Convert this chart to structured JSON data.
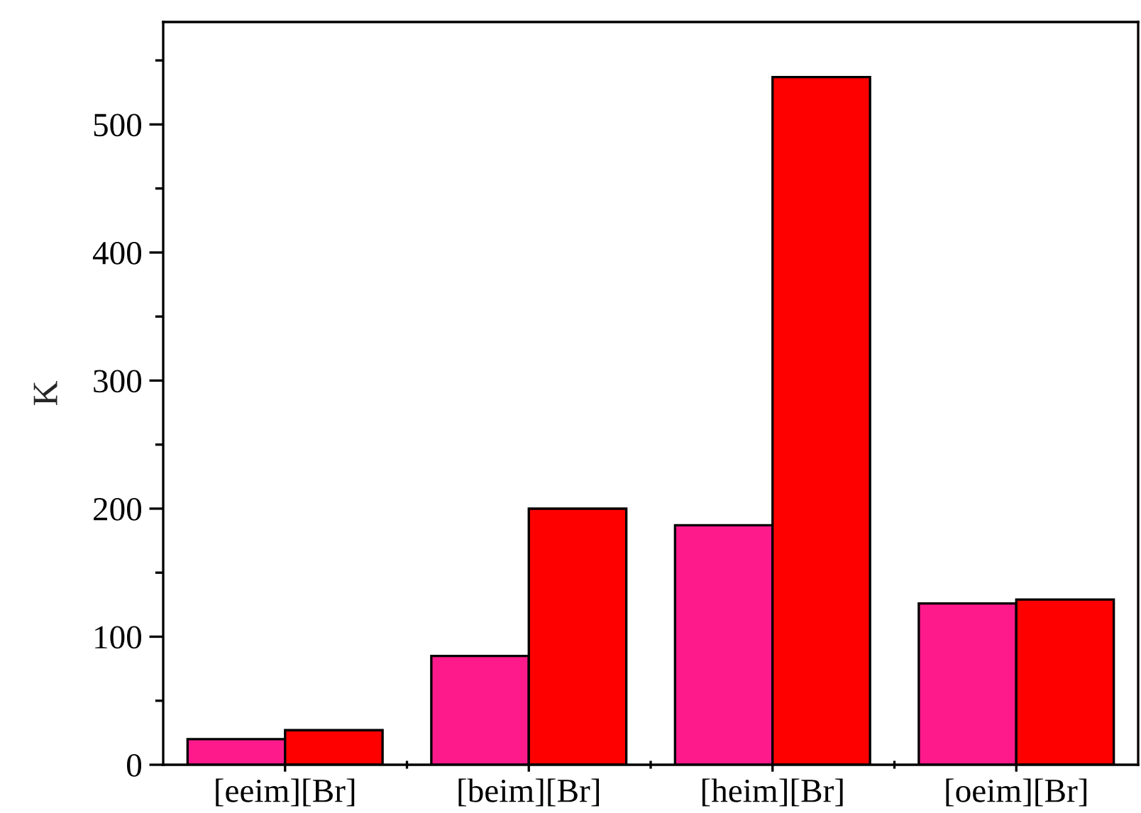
{
  "chart_data": {
    "type": "bar",
    "ylabel": "K",
    "categories": [
      "[eeim][Br]",
      "[beim][Br]",
      "[heim][Br]",
      "[oeim][Br]"
    ],
    "series": [
      {
        "color": "#ff1a8c",
        "values": [
          20,
          85,
          187,
          126
        ]
      },
      {
        "color": "#ff0000",
        "values": [
          27,
          200,
          537,
          129
        ]
      }
    ],
    "ylim": [
      0,
      580
    ],
    "yticks": [
      0,
      100,
      200,
      300,
      400,
      500
    ],
    "grid": false,
    "legend": false
  }
}
